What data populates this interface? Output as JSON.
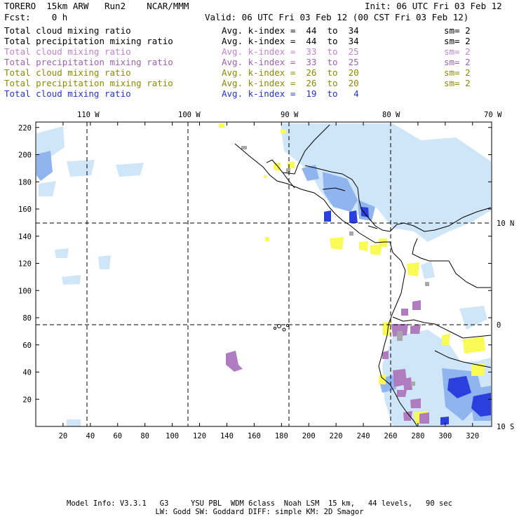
{
  "header": {
    "model": "TORERO  15km ARW   Run2    NCAR/MMM",
    "init": "Init: 06 UTC Fri 03 Feb 12",
    "forecast": "Fcst:    0 h",
    "valid": "Valid: 06 UTC Fri 03 Feb 12 (00 CST Fri 03 Feb 12)"
  },
  "legend": [
    {
      "field": "Total cloud mixing ratio",
      "kindex": "Avg. k-index =  44  to  34",
      "sm": "sm= 2",
      "color": "#000000"
    },
    {
      "field": "Total precipitation mixing ratio",
      "kindex": "Avg. k-index =  44  to  34",
      "sm": "sm= 2",
      "color": "#000000"
    },
    {
      "field": "Total cloud mixing ratio",
      "kindex": "Avg. k-index =  33  to  25",
      "sm": "sm= 2",
      "color": "#c47fd0"
    },
    {
      "field": "Total precipitation mixing ratio",
      "kindex": "Avg. k-index =  33  to  25",
      "sm": "sm= 2",
      "color": "#a060b0"
    },
    {
      "field": "Total cloud mixing ratio",
      "kindex": "Avg. k-index =  26  to  20",
      "sm": "sm= 2",
      "color": "#8a8a00"
    },
    {
      "field": "Total precipitation mixing ratio",
      "kindex": "Avg. k-index =  26  to  20",
      "sm": "sm= 2",
      "color": "#8a8a00"
    },
    {
      "field": "Total cloud mixing ratio",
      "kindex": "Avg. k-index =  19  to   4",
      "sm": "",
      "color": "#2233cc"
    }
  ],
  "map": {
    "x_ticks": [
      "20",
      "40",
      "60",
      "80",
      "100",
      "120",
      "140",
      "160",
      "180",
      "200",
      "220",
      "240",
      "260",
      "280",
      "300",
      "320"
    ],
    "y_ticks": [
      "20",
      "40",
      "60",
      "80",
      "100",
      "120",
      "140",
      "160",
      "180",
      "200",
      "220"
    ],
    "top_labels": [
      "110 W",
      "100 W",
      "90 W",
      "80 W",
      "70 W"
    ],
    "right_labels": [
      "10 N",
      "0",
      "10 S"
    ]
  },
  "colors": {
    "light_blue": "#cfe6f8",
    "mid_blue": "#8fb4ee",
    "dark_blue": "#2a3fdc",
    "yellow": "#fafa55",
    "purple": "#b07cc0",
    "gray": "#a8a8a8"
  },
  "footer": {
    "line1": "Model Info: V3.3.1   G3     YSU PBL  WDM 6class  Noah LSM  15 km,   44 levels,   90 sec",
    "line2": "LW: Godd SW: Goddard DIFF: simple KM: 2D Smagor"
  }
}
